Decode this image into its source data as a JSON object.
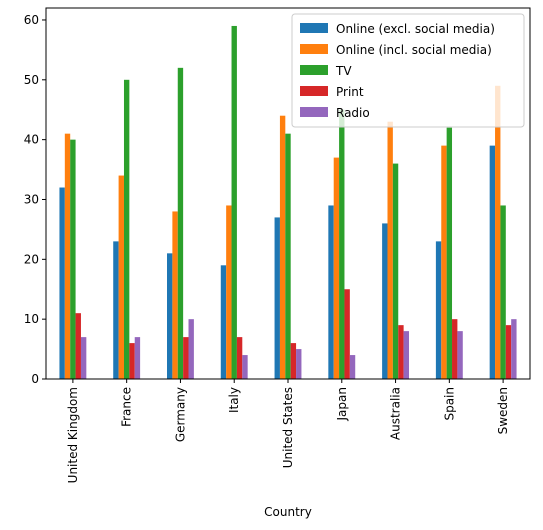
{
  "chart_data": {
    "type": "bar",
    "xlabel": "Country",
    "ylabel": "",
    "title": "",
    "ylim": [
      0,
      62
    ],
    "yticks": [
      0,
      10,
      20,
      30,
      40,
      50,
      60
    ],
    "grid": false,
    "legend_position": "top-right",
    "categories": [
      "United Kingdom",
      "France",
      "Germany",
      "Italy",
      "United States",
      "Japan",
      "Australia",
      "Spain",
      "Sweden"
    ],
    "series": [
      {
        "name": "Online (excl. social media)",
        "color": "#1f77b4",
        "values": [
          32,
          23,
          21,
          19,
          27,
          29,
          26,
          23,
          39
        ]
      },
      {
        "name": "Online (incl. social media)",
        "color": "#ff7f0e",
        "values": [
          41,
          34,
          28,
          29,
          44,
          37,
          43,
          39,
          49
        ]
      },
      {
        "name": "TV",
        "color": "#2ca02c",
        "values": [
          40,
          50,
          52,
          59,
          41,
          45,
          36,
          42,
          29
        ]
      },
      {
        "name": "Print",
        "color": "#d62728",
        "values": [
          11,
          6,
          7,
          7,
          6,
          15,
          9,
          10,
          9
        ]
      },
      {
        "name": "Radio",
        "color": "#9467bd",
        "values": [
          7,
          7,
          10,
          4,
          5,
          4,
          8,
          8,
          10
        ]
      }
    ]
  }
}
